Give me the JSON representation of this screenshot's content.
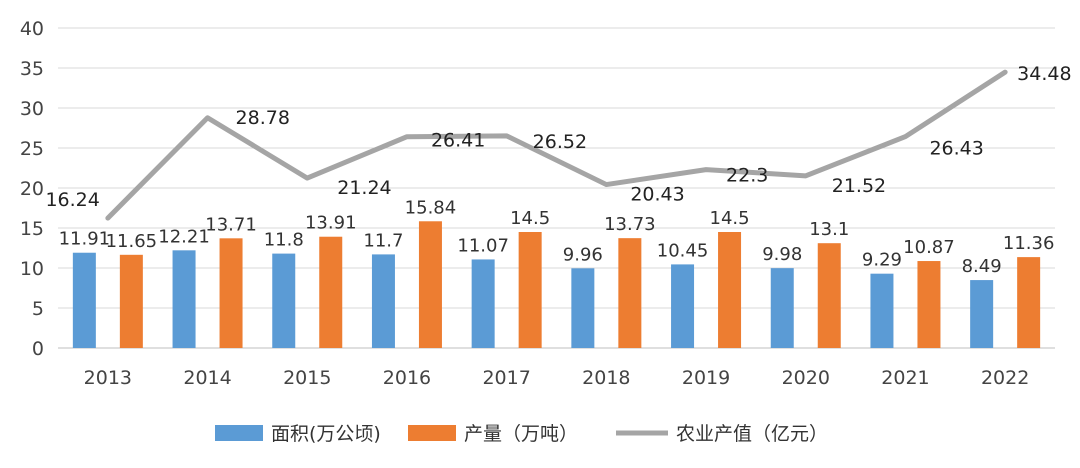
{
  "chart_data": {
    "type": "bar+line",
    "title": "",
    "xlabel": "",
    "ylabel": "",
    "ylim": [
      0,
      40
    ],
    "yticks": [
      0,
      5,
      10,
      15,
      20,
      25,
      30,
      35,
      40
    ],
    "grid": true,
    "legend_position": "bottom",
    "categories": [
      "2013",
      "2014",
      "2015",
      "2016",
      "2017",
      "2018",
      "2019",
      "2020",
      "2021",
      "2022"
    ],
    "series": [
      {
        "name": "面积(万公顷)",
        "type": "bar",
        "color": "#5b9bd5",
        "values": [
          11.91,
          12.21,
          11.8,
          11.7,
          11.07,
          9.96,
          10.45,
          9.98,
          9.29,
          8.49
        ],
        "labels": [
          "11.91",
          "12.21",
          "11.8",
          "11.7",
          "11.07",
          "9.96",
          "10.45",
          "9.98",
          "9.29",
          "8.49"
        ]
      },
      {
        "name": "产量（万吨）",
        "type": "bar",
        "color": "#ed7d31",
        "values": [
          11.65,
          13.71,
          13.91,
          15.84,
          14.5,
          13.73,
          14.5,
          13.1,
          10.87,
          11.36
        ],
        "labels": [
          "11.65",
          "13.71",
          "13.91",
          "15.84",
          "14.5",
          "13.73",
          "14.5",
          "13.1",
          "10.87",
          "11.36"
        ]
      },
      {
        "name": "农业产值（亿元）",
        "type": "line",
        "color": "#a5a5a5",
        "values": [
          16.24,
          28.78,
          21.24,
          26.41,
          26.52,
          20.43,
          22.3,
          21.52,
          26.43,
          34.48
        ],
        "labels": [
          "16.24",
          "28.78",
          "21.24",
          "26.41",
          "26.52",
          "20.43",
          "22.3",
          "21.52",
          "26.43",
          "34.48"
        ]
      }
    ]
  }
}
